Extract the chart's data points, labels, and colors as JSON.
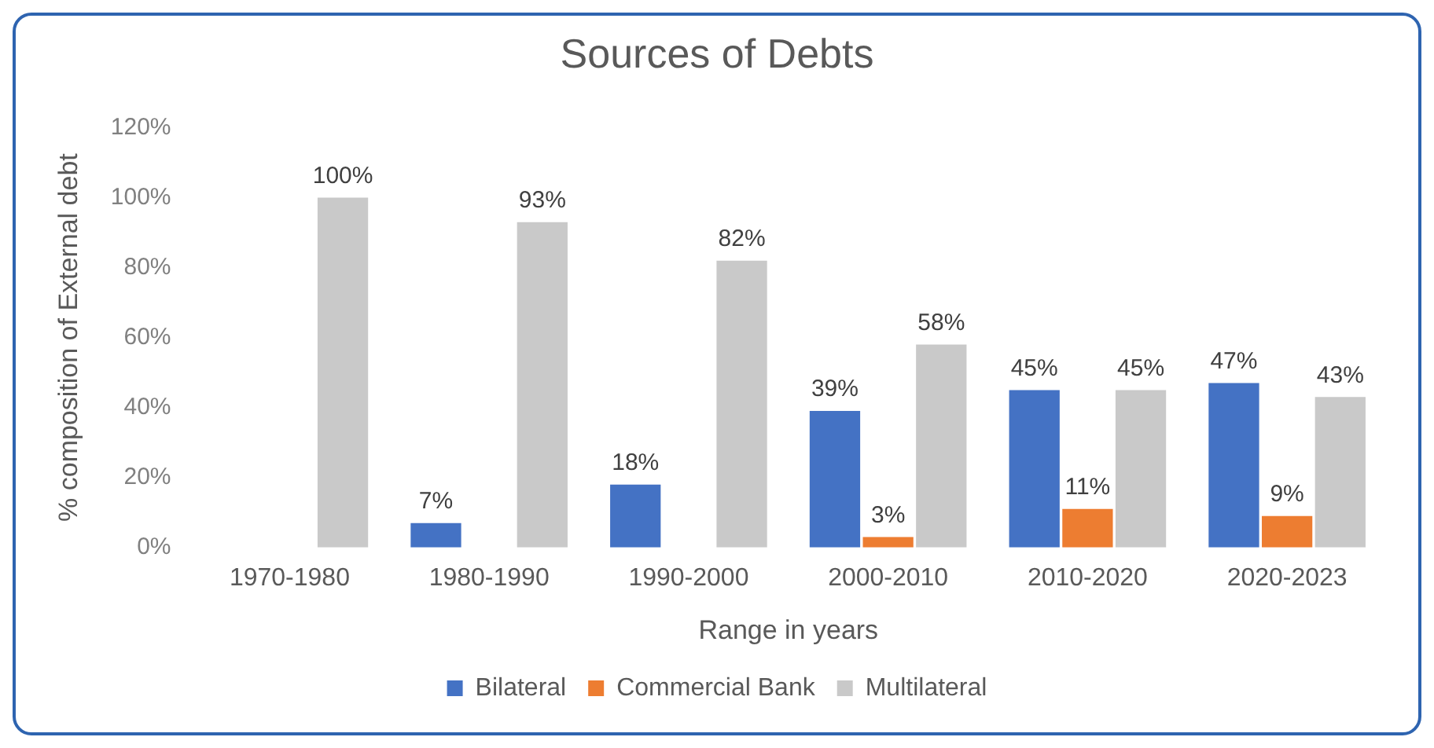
{
  "chart_data": {
    "type": "bar",
    "title": "Sources of Debts",
    "xlabel": "Range in years",
    "ylabel": "% composition of External debt",
    "categories": [
      "1970-1980",
      "1980-1990",
      "1990-2000",
      "2000-2010",
      "2010-2020",
      "2020-2023"
    ],
    "series": [
      {
        "name": "Bilateral",
        "color": "#4472c4",
        "values": [
          null,
          7,
          18,
          39,
          45,
          47
        ],
        "value_labels": [
          null,
          "7%",
          "18%",
          "39%",
          "45%",
          "47%"
        ]
      },
      {
        "name": "Commercial Bank",
        "color": "#ed7d31",
        "values": [
          null,
          null,
          null,
          3,
          11,
          9
        ],
        "value_labels": [
          null,
          null,
          null,
          "3%",
          "11%",
          "9%"
        ]
      },
      {
        "name": "Multilateral",
        "color": "#c9c9c9",
        "values": [
          100,
          93,
          82,
          58,
          45,
          43
        ],
        "value_labels": [
          "100%",
          "93%",
          "82%",
          "58%",
          "45%",
          "43%"
        ]
      }
    ],
    "ylim": [
      0,
      120
    ],
    "yticks": [
      {
        "value": 0,
        "label": "0%"
      },
      {
        "value": 20,
        "label": "20%"
      },
      {
        "value": 40,
        "label": "40%"
      },
      {
        "value": 60,
        "label": "60%"
      },
      {
        "value": 80,
        "label": "80%"
      },
      {
        "value": 100,
        "label": "100%"
      },
      {
        "value": 120,
        "label": "120%"
      }
    ],
    "grid": false,
    "legend": "bottom"
  }
}
